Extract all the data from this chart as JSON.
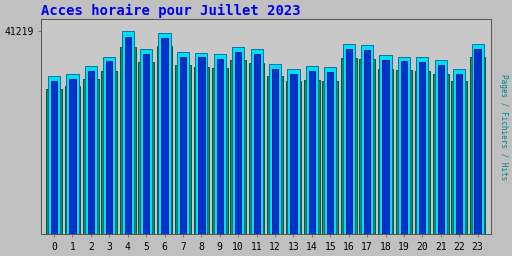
{
  "title": "Acces horaire pour Juillet 2023",
  "title_color": "#0000ee",
  "ylabel_right": "Pages / Fichiers / Hits",
  "ylabel_right_color": "#008888",
  "categories": [
    0,
    1,
    2,
    3,
    4,
    5,
    6,
    7,
    8,
    9,
    10,
    11,
    12,
    13,
    14,
    15,
    16,
    17,
    18,
    19,
    20,
    21,
    22,
    23
  ],
  "pages_values": [
    32000,
    32500,
    34000,
    36000,
    41219,
    37500,
    40800,
    37000,
    36800,
    36500,
    38000,
    37500,
    34500,
    33500,
    34000,
    33800,
    38500,
    38300,
    36300,
    36000,
    35800,
    35300,
    33500,
    38500
  ],
  "hits_values": [
    31000,
    31500,
    33000,
    35000,
    40000,
    36500,
    39800,
    36000,
    35800,
    35500,
    37000,
    36500,
    33500,
    32500,
    33000,
    32800,
    37500,
    37300,
    35300,
    35000,
    34800,
    34300,
    32500,
    37500
  ],
  "files_values": [
    29500,
    30000,
    31500,
    33000,
    38000,
    34800,
    38200,
    34200,
    33900,
    33700,
    35200,
    34700,
    32000,
    31000,
    31300,
    31100,
    35600,
    35400,
    33400,
    33200,
    33000,
    32500,
    31000,
    36000
  ],
  "bar_color_cyan": "#00ddff",
  "bar_color_blue": "#0033cc",
  "bar_color_teal": "#009966",
  "background_color": "#c0c0c0",
  "plot_bg_color": "#c8c8c8",
  "bar_width": 0.85,
  "ylim_max": 43500,
  "ytick_val": 41219,
  "ytick_label": "41219",
  "title_fontsize": 10,
  "tick_fontsize": 7
}
